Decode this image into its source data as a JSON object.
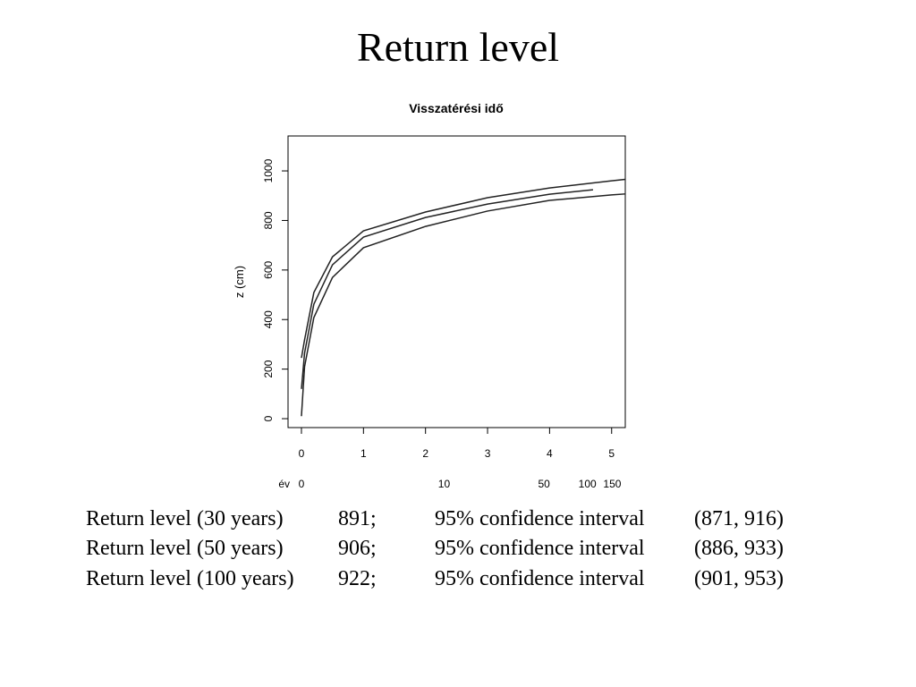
{
  "title": "Return level",
  "chart_data": {
    "type": "line",
    "title": "Visszatérési idő",
    "y_label": "z (cm)",
    "xlim": [
      -0.216,
      5.22
    ],
    "ylim": [
      -36,
      1141
    ],
    "xticks": [
      0,
      1,
      2,
      3,
      4,
      5
    ],
    "yticks": [
      0,
      200,
      400,
      600,
      800,
      1000
    ],
    "x2_label": "év",
    "x2ticks": [
      0,
      {
        "value": 2.3,
        "label": "10"
      },
      {
        "value": 3.91,
        "label": "50"
      },
      {
        "value": 4.61,
        "label": "100"
      },
      {
        "value": 5.01,
        "label": "150"
      }
    ],
    "series": [
      {
        "color": "#222222",
        "x": [
          0,
          0.05,
          0.2,
          0.5,
          1,
          2,
          3,
          4,
          5,
          5.22
        ],
        "values": [
          245,
          318,
          509,
          653,
          758,
          834,
          892,
          931,
          960,
          966
        ]
      },
      {
        "color": "#222222",
        "x": [
          0,
          0.05,
          0.2,
          0.5,
          1,
          2,
          3,
          4,
          4.7
        ],
        "values": [
          120,
          264,
          462,
          621,
          733,
          812,
          866,
          906,
          924
        ]
      },
      {
        "color": "#222222",
        "x": [
          0,
          0.05,
          0.2,
          0.5,
          1,
          2,
          3,
          4,
          5,
          5.22
        ],
        "values": [
          10,
          209,
          408,
          570,
          690,
          776,
          838,
          881,
          903,
          907
        ]
      }
    ]
  },
  "table": {
    "rows": [
      [
        "Return level (30 years)",
        "891;",
        "95% confidence interval",
        "(871, 916)"
      ],
      [
        "Return level (50 years)",
        "906;",
        "95% confidence interval",
        "(886, 933)"
      ],
      [
        "Return level (100 years)",
        "922;",
        "95% confidence interval",
        "(901, 953)"
      ]
    ]
  }
}
